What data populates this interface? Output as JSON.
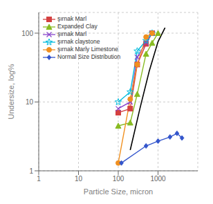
{
  "chart_data": {
    "type": "line",
    "xlabel": "Particle Size, micron",
    "ylabel": "Undersize, log%",
    "log": true,
    "grid": true,
    "legend": "upper left",
    "xlim": [
      1,
      10000
    ],
    "ylim": [
      1,
      200
    ],
    "xticks": [
      1,
      10,
      100,
      1000
    ],
    "yticks": [
      1,
      10,
      100
    ],
    "series": [
      {
        "name": "şırnak Marl",
        "color": "#d44040",
        "marker": "square",
        "x": [
          100,
          200,
          300,
          500,
          710
        ],
        "values": [
          7,
          8,
          35,
          70,
          100
        ]
      },
      {
        "name": "Expanded Clay",
        "color": "#88bb22",
        "marker": "triangle",
        "x": [
          100,
          200,
          300,
          500,
          710,
          1000
        ],
        "values": [
          4.5,
          5,
          13,
          50,
          72,
          100
        ]
      },
      {
        "name": "şırnak Marl",
        "color": "#8844cc",
        "marker": "x",
        "x": [
          100,
          200,
          300,
          500,
          710
        ],
        "values": [
          8,
          10,
          45,
          72,
          100
        ]
      },
      {
        "name": "şırnak claystone",
        "color": "#00bbdd",
        "marker": "star",
        "x": [
          100,
          200,
          300,
          500,
          710
        ],
        "values": [
          10,
          14,
          55,
          78,
          100
        ]
      },
      {
        "name": "şırnak Marly Limestone",
        "color": "#f09020",
        "marker": "circle",
        "x": [
          100,
          200,
          300,
          500,
          710
        ],
        "values": [
          1.3,
          11,
          35,
          88,
          100
        ]
      },
      {
        "name": "Normal Size Distribution",
        "color": "#3355cc",
        "marker": "diamond",
        "x": [
          120,
          500,
          1000,
          2000,
          3000,
          4000
        ],
        "values": [
          1.3,
          2.3,
          2.7,
          3.1,
          3.5,
          3.0
        ]
      },
      {
        "color": "#000000",
        "line_style": "solid",
        "x": [
          200,
          350,
          600,
          1000,
          1500
        ],
        "values": [
          2,
          8,
          28,
          75,
          120
        ]
      }
    ]
  }
}
